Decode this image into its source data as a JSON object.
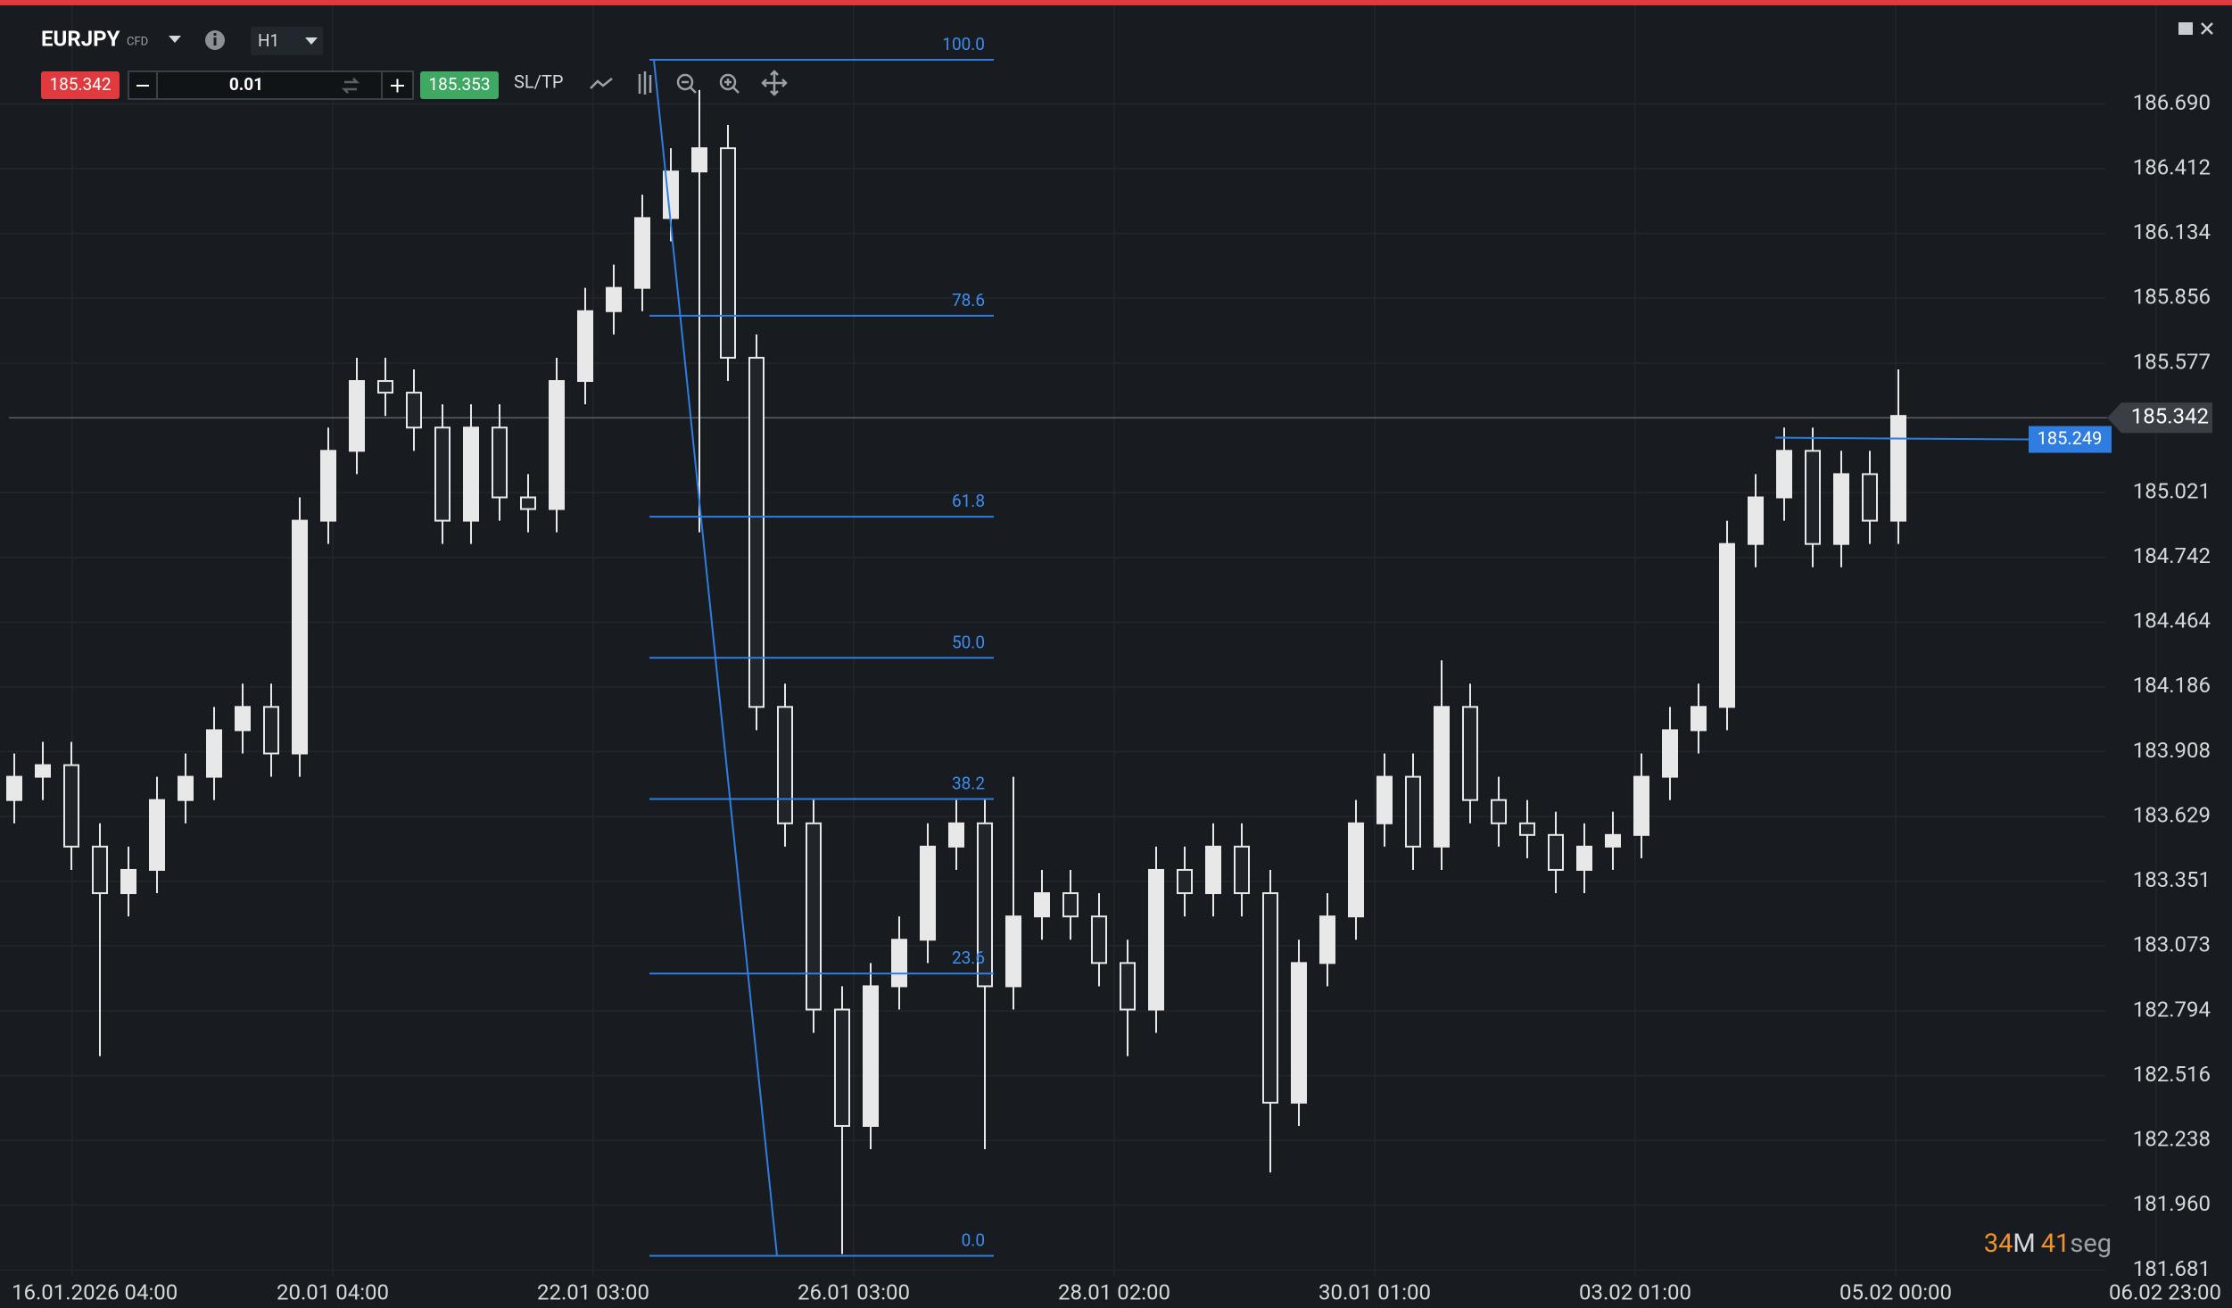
{
  "header": {
    "symbol": "EURJPY",
    "instrument_type": "CFD",
    "timeframe": "H1",
    "bid": "185.342",
    "lot": "0.01",
    "ask": "185.353",
    "sltp": "SL/TP"
  },
  "chart_data": {
    "type": "candlestick",
    "x_labels": [
      "16.01.2026 04:00",
      "20.01 04:00",
      "22.01 03:00",
      "26.01 03:00",
      "28.01 02:00",
      "30.01 01:00",
      "03.02 01:00",
      "05.02 00:00",
      "06.02 23:00"
    ],
    "open": [
      183.7,
      183.8,
      183.85,
      183.5,
      183.3,
      183.4,
      183.7,
      183.8,
      184.0,
      184.1,
      183.9,
      184.9,
      185.2,
      185.5,
      185.45,
      185.3,
      184.9,
      185.3,
      185.0,
      184.95,
      185.5,
      185.8,
      185.9,
      186.2,
      186.4,
      186.5,
      185.6,
      184.1,
      183.6,
      182.8,
      182.3,
      182.9,
      183.1,
      183.5,
      183.6,
      182.9,
      183.2,
      183.3,
      183.2,
      183.0,
      182.8,
      183.4,
      183.3,
      183.5,
      183.3,
      182.4,
      183.0,
      183.2,
      183.6,
      183.8,
      183.5,
      184.1,
      183.7,
      183.6,
      183.55,
      183.4,
      183.5,
      183.55,
      183.8,
      184.0,
      184.1,
      184.8,
      185.0,
      185.2,
      184.8,
      185.1,
      184.9
    ],
    "high": [
      183.9,
      183.95,
      183.95,
      183.6,
      183.5,
      183.8,
      183.9,
      184.1,
      184.2,
      184.2,
      185.0,
      185.3,
      185.6,
      185.6,
      185.55,
      185.4,
      185.4,
      185.4,
      185.1,
      185.6,
      185.9,
      186.0,
      186.3,
      186.5,
      186.75,
      186.6,
      185.7,
      184.2,
      183.7,
      182.9,
      183.0,
      183.2,
      183.6,
      183.7,
      183.7,
      183.8,
      183.4,
      183.4,
      183.3,
      183.1,
      183.5,
      183.5,
      183.6,
      183.6,
      183.4,
      183.1,
      183.3,
      183.7,
      183.9,
      183.9,
      184.3,
      184.2,
      183.8,
      183.7,
      183.65,
      183.6,
      183.65,
      183.9,
      184.1,
      184.2,
      184.9,
      185.1,
      185.3,
      185.3,
      185.2,
      185.2,
      185.55
    ],
    "low": [
      183.6,
      183.7,
      183.4,
      182.6,
      183.2,
      183.3,
      183.6,
      183.7,
      183.9,
      183.8,
      183.8,
      184.8,
      185.1,
      185.35,
      185.2,
      184.8,
      184.8,
      184.9,
      184.85,
      184.85,
      185.4,
      185.7,
      185.8,
      186.1,
      184.85,
      185.5,
      184.0,
      183.5,
      182.7,
      181.75,
      182.2,
      182.8,
      183.0,
      183.4,
      182.2,
      182.8,
      183.1,
      183.1,
      182.9,
      182.6,
      182.7,
      183.2,
      183.2,
      183.2,
      182.1,
      182.3,
      182.9,
      183.1,
      183.5,
      183.4,
      183.4,
      183.6,
      183.5,
      183.45,
      183.3,
      183.3,
      183.4,
      183.45,
      183.7,
      183.9,
      184.0,
      184.7,
      184.9,
      184.7,
      184.7,
      184.8,
      184.8
    ],
    "close": [
      183.8,
      183.85,
      183.5,
      183.3,
      183.4,
      183.7,
      183.8,
      184.0,
      184.1,
      183.9,
      184.9,
      185.2,
      185.5,
      185.45,
      185.3,
      184.9,
      185.3,
      185.0,
      184.95,
      185.5,
      185.8,
      185.9,
      186.2,
      186.4,
      186.5,
      185.6,
      184.1,
      183.6,
      182.8,
      182.3,
      182.9,
      183.1,
      183.5,
      183.6,
      182.9,
      183.2,
      183.3,
      183.2,
      183.0,
      182.8,
      183.4,
      183.3,
      183.5,
      183.3,
      182.4,
      183.0,
      183.2,
      183.6,
      183.8,
      183.5,
      184.1,
      183.7,
      183.6,
      183.55,
      183.4,
      183.5,
      183.55,
      183.8,
      184.0,
      184.1,
      184.8,
      185.0,
      185.2,
      184.8,
      185.1,
      184.9,
      185.35
    ],
    "up_color": "#e8e8e8",
    "down_color": "#20252b",
    "ylim": [
      181.656,
      187.106
    ],
    "yticks": [
      {
        "value": 186.69,
        "label": "186.690"
      },
      186.412,
      186.134,
      185.856,
      185.577,
      185.021,
      184.742,
      184.464,
      184.186,
      183.908,
      183.629,
      183.351,
      183.073,
      182.794,
      182.516,
      182.238,
      {
        "value": 181.96,
        "label": "181.960"
      },
      181.681
    ],
    "grid": true,
    "price_line": 185.342,
    "order_line": 185.249,
    "fibonacci": {
      "high": 186.88,
      "low": 181.742,
      "color": "#2f7de1",
      "levels": [
        {
          "value": 100,
          "label": "100.0"
        },
        78.6,
        61.8,
        {
          "value": 50,
          "label": "50.0"
        },
        38.2,
        23.6,
        {
          "value": 0,
          "label": "0.0"
        }
      ]
    }
  },
  "timer": {
    "minutes": "34",
    "minutes_unit": "M",
    "seconds": "41",
    "seconds_unit": "seg"
  }
}
